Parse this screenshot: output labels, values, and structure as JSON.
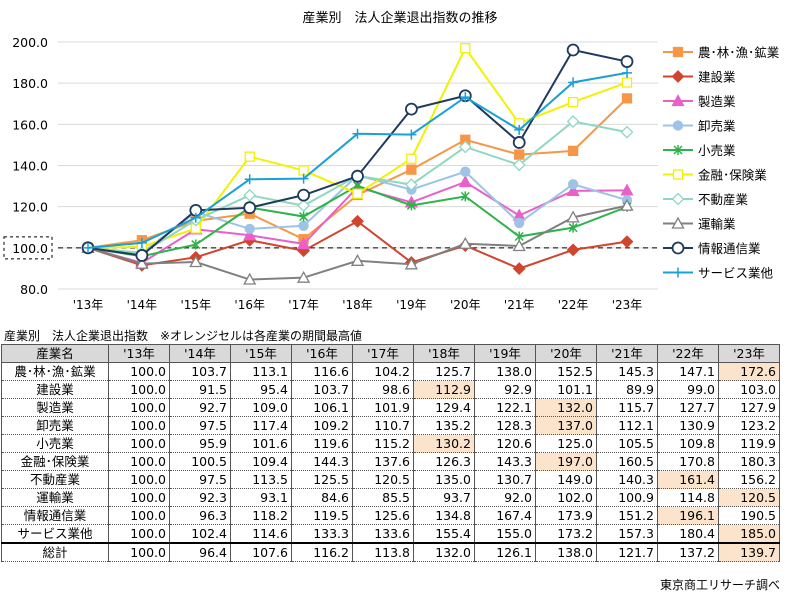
{
  "chart_data": {
    "type": "line",
    "title": "産業別　法人企業退出指数の推移",
    "categories": [
      "'13年",
      "'14年",
      "'15年",
      "'16年",
      "'17年",
      "'18年",
      "'19年",
      "'20年",
      "'21年",
      "'22年",
      "'23年"
    ],
    "ylim": [
      80,
      200
    ],
    "yticks": [
      "80.0",
      "100.0",
      "120.0",
      "140.0",
      "160.0",
      "180.0",
      "200.0"
    ],
    "grid": true,
    "reference_line": 100,
    "legend": "right",
    "series": [
      {
        "name": "農･林･漁･鉱業",
        "color": "#f79646",
        "marker": "square",
        "values": [
          100.0,
          103.7,
          113.1,
          116.6,
          104.2,
          125.7,
          138.0,
          152.5,
          145.3,
          147.1,
          172.6
        ]
      },
      {
        "name": "建設業",
        "color": "#d0452e",
        "marker": "diamond",
        "values": [
          100.0,
          91.5,
          95.4,
          103.7,
          98.6,
          112.9,
          92.9,
          101.1,
          89.9,
          99.0,
          103.0
        ]
      },
      {
        "name": "製造業",
        "color": "#e860c8",
        "marker": "triangle",
        "values": [
          100.0,
          92.7,
          109.0,
          106.1,
          101.9,
          129.4,
          122.1,
          132.0,
          115.7,
          127.7,
          127.9
        ]
      },
      {
        "name": "卸売業",
        "color": "#9dc3e6",
        "marker": "circle",
        "values": [
          100.0,
          97.5,
          117.4,
          109.2,
          110.7,
          135.2,
          128.3,
          137.0,
          112.1,
          130.9,
          123.2
        ]
      },
      {
        "name": "小売業",
        "color": "#2db34a",
        "marker": "star",
        "values": [
          100.0,
          95.9,
          101.6,
          119.6,
          115.2,
          130.2,
          120.6,
          125.0,
          105.5,
          109.8,
          119.9
        ]
      },
      {
        "name": "金融･保険業",
        "color": "#f2f200",
        "marker": "square-open",
        "values": [
          100.0,
          100.5,
          109.4,
          144.3,
          137.6,
          126.3,
          143.3,
          197.0,
          160.5,
          170.8,
          180.3
        ]
      },
      {
        "name": "不動産業",
        "color": "#8fd8c0",
        "marker": "diamond-open",
        "values": [
          100.0,
          97.5,
          113.5,
          125.5,
          120.5,
          135.0,
          130.7,
          149.0,
          140.3,
          161.4,
          156.2
        ]
      },
      {
        "name": "運輸業",
        "color": "#808080",
        "marker": "triangle-open",
        "values": [
          100.0,
          92.3,
          93.1,
          84.6,
          85.5,
          93.7,
          92.0,
          102.0,
          100.9,
          114.8,
          120.5
        ]
      },
      {
        "name": "情報通信業",
        "color": "#1f3a5c",
        "marker": "circle-open",
        "values": [
          100.0,
          96.3,
          118.2,
          119.5,
          125.6,
          134.8,
          167.4,
          173.9,
          151.2,
          196.1,
          190.5
        ]
      },
      {
        "name": "サービス業他",
        "color": "#1aa0d8",
        "marker": "plus",
        "values": [
          100.0,
          102.4,
          114.6,
          133.3,
          133.6,
          155.4,
          155.0,
          173.2,
          157.3,
          180.4,
          185.0
        ]
      }
    ]
  },
  "table": {
    "title": "産業別　法人企業退出指数　※オレンジセルは各産業の期間最高値",
    "header": [
      "産業名",
      "'13年",
      "'14年",
      "'15年",
      "'16年",
      "'17年",
      "'18年",
      "'19年",
      "'20年",
      "'21年",
      "'22年",
      "'23年"
    ],
    "highlight_color": "#fbe3cc",
    "rows": [
      {
        "name": "農･林･漁･鉱業",
        "values": [
          "100.0",
          "103.7",
          "113.1",
          "116.6",
          "104.2",
          "125.7",
          "138.0",
          "152.5",
          "145.3",
          "147.1",
          "172.6"
        ],
        "max_index": 10
      },
      {
        "name": "建設業",
        "values": [
          "100.0",
          "91.5",
          "95.4",
          "103.7",
          "98.6",
          "112.9",
          "92.9",
          "101.1",
          "89.9",
          "99.0",
          "103.0"
        ],
        "max_index": 5
      },
      {
        "name": "製造業",
        "values": [
          "100.0",
          "92.7",
          "109.0",
          "106.1",
          "101.9",
          "129.4",
          "122.1",
          "132.0",
          "115.7",
          "127.7",
          "127.9"
        ],
        "max_index": 7
      },
      {
        "name": "卸売業",
        "values": [
          "100.0",
          "97.5",
          "117.4",
          "109.2",
          "110.7",
          "135.2",
          "128.3",
          "137.0",
          "112.1",
          "130.9",
          "123.2"
        ],
        "max_index": 7
      },
      {
        "name": "小売業",
        "values": [
          "100.0",
          "95.9",
          "101.6",
          "119.6",
          "115.2",
          "130.2",
          "120.6",
          "125.0",
          "105.5",
          "109.8",
          "119.9"
        ],
        "max_index": 5
      },
      {
        "name": "金融･保険業",
        "values": [
          "100.0",
          "100.5",
          "109.4",
          "144.3",
          "137.6",
          "126.3",
          "143.3",
          "197.0",
          "160.5",
          "170.8",
          "180.3"
        ],
        "max_index": 7
      },
      {
        "name": "不動産業",
        "values": [
          "100.0",
          "97.5",
          "113.5",
          "125.5",
          "120.5",
          "135.0",
          "130.7",
          "149.0",
          "140.3",
          "161.4",
          "156.2"
        ],
        "max_index": 9
      },
      {
        "name": "運輸業",
        "values": [
          "100.0",
          "92.3",
          "93.1",
          "84.6",
          "85.5",
          "93.7",
          "92.0",
          "102.0",
          "100.9",
          "114.8",
          "120.5"
        ],
        "max_index": 10
      },
      {
        "name": "情報通信業",
        "values": [
          "100.0",
          "96.3",
          "118.2",
          "119.5",
          "125.6",
          "134.8",
          "167.4",
          "173.9",
          "151.2",
          "196.1",
          "190.5"
        ],
        "max_index": 9
      },
      {
        "name": "サービス業他",
        "values": [
          "100.0",
          "102.4",
          "114.6",
          "133.3",
          "133.6",
          "155.4",
          "155.0",
          "173.2",
          "157.3",
          "180.4",
          "185.0"
        ],
        "max_index": 10
      },
      {
        "name": "総計",
        "values": [
          "100.0",
          "96.4",
          "107.6",
          "116.2",
          "113.8",
          "132.0",
          "126.1",
          "138.0",
          "121.7",
          "137.2",
          "139.7"
        ],
        "max_index": 10,
        "total": true
      }
    ]
  },
  "source": "東京商工リサーチ調べ"
}
